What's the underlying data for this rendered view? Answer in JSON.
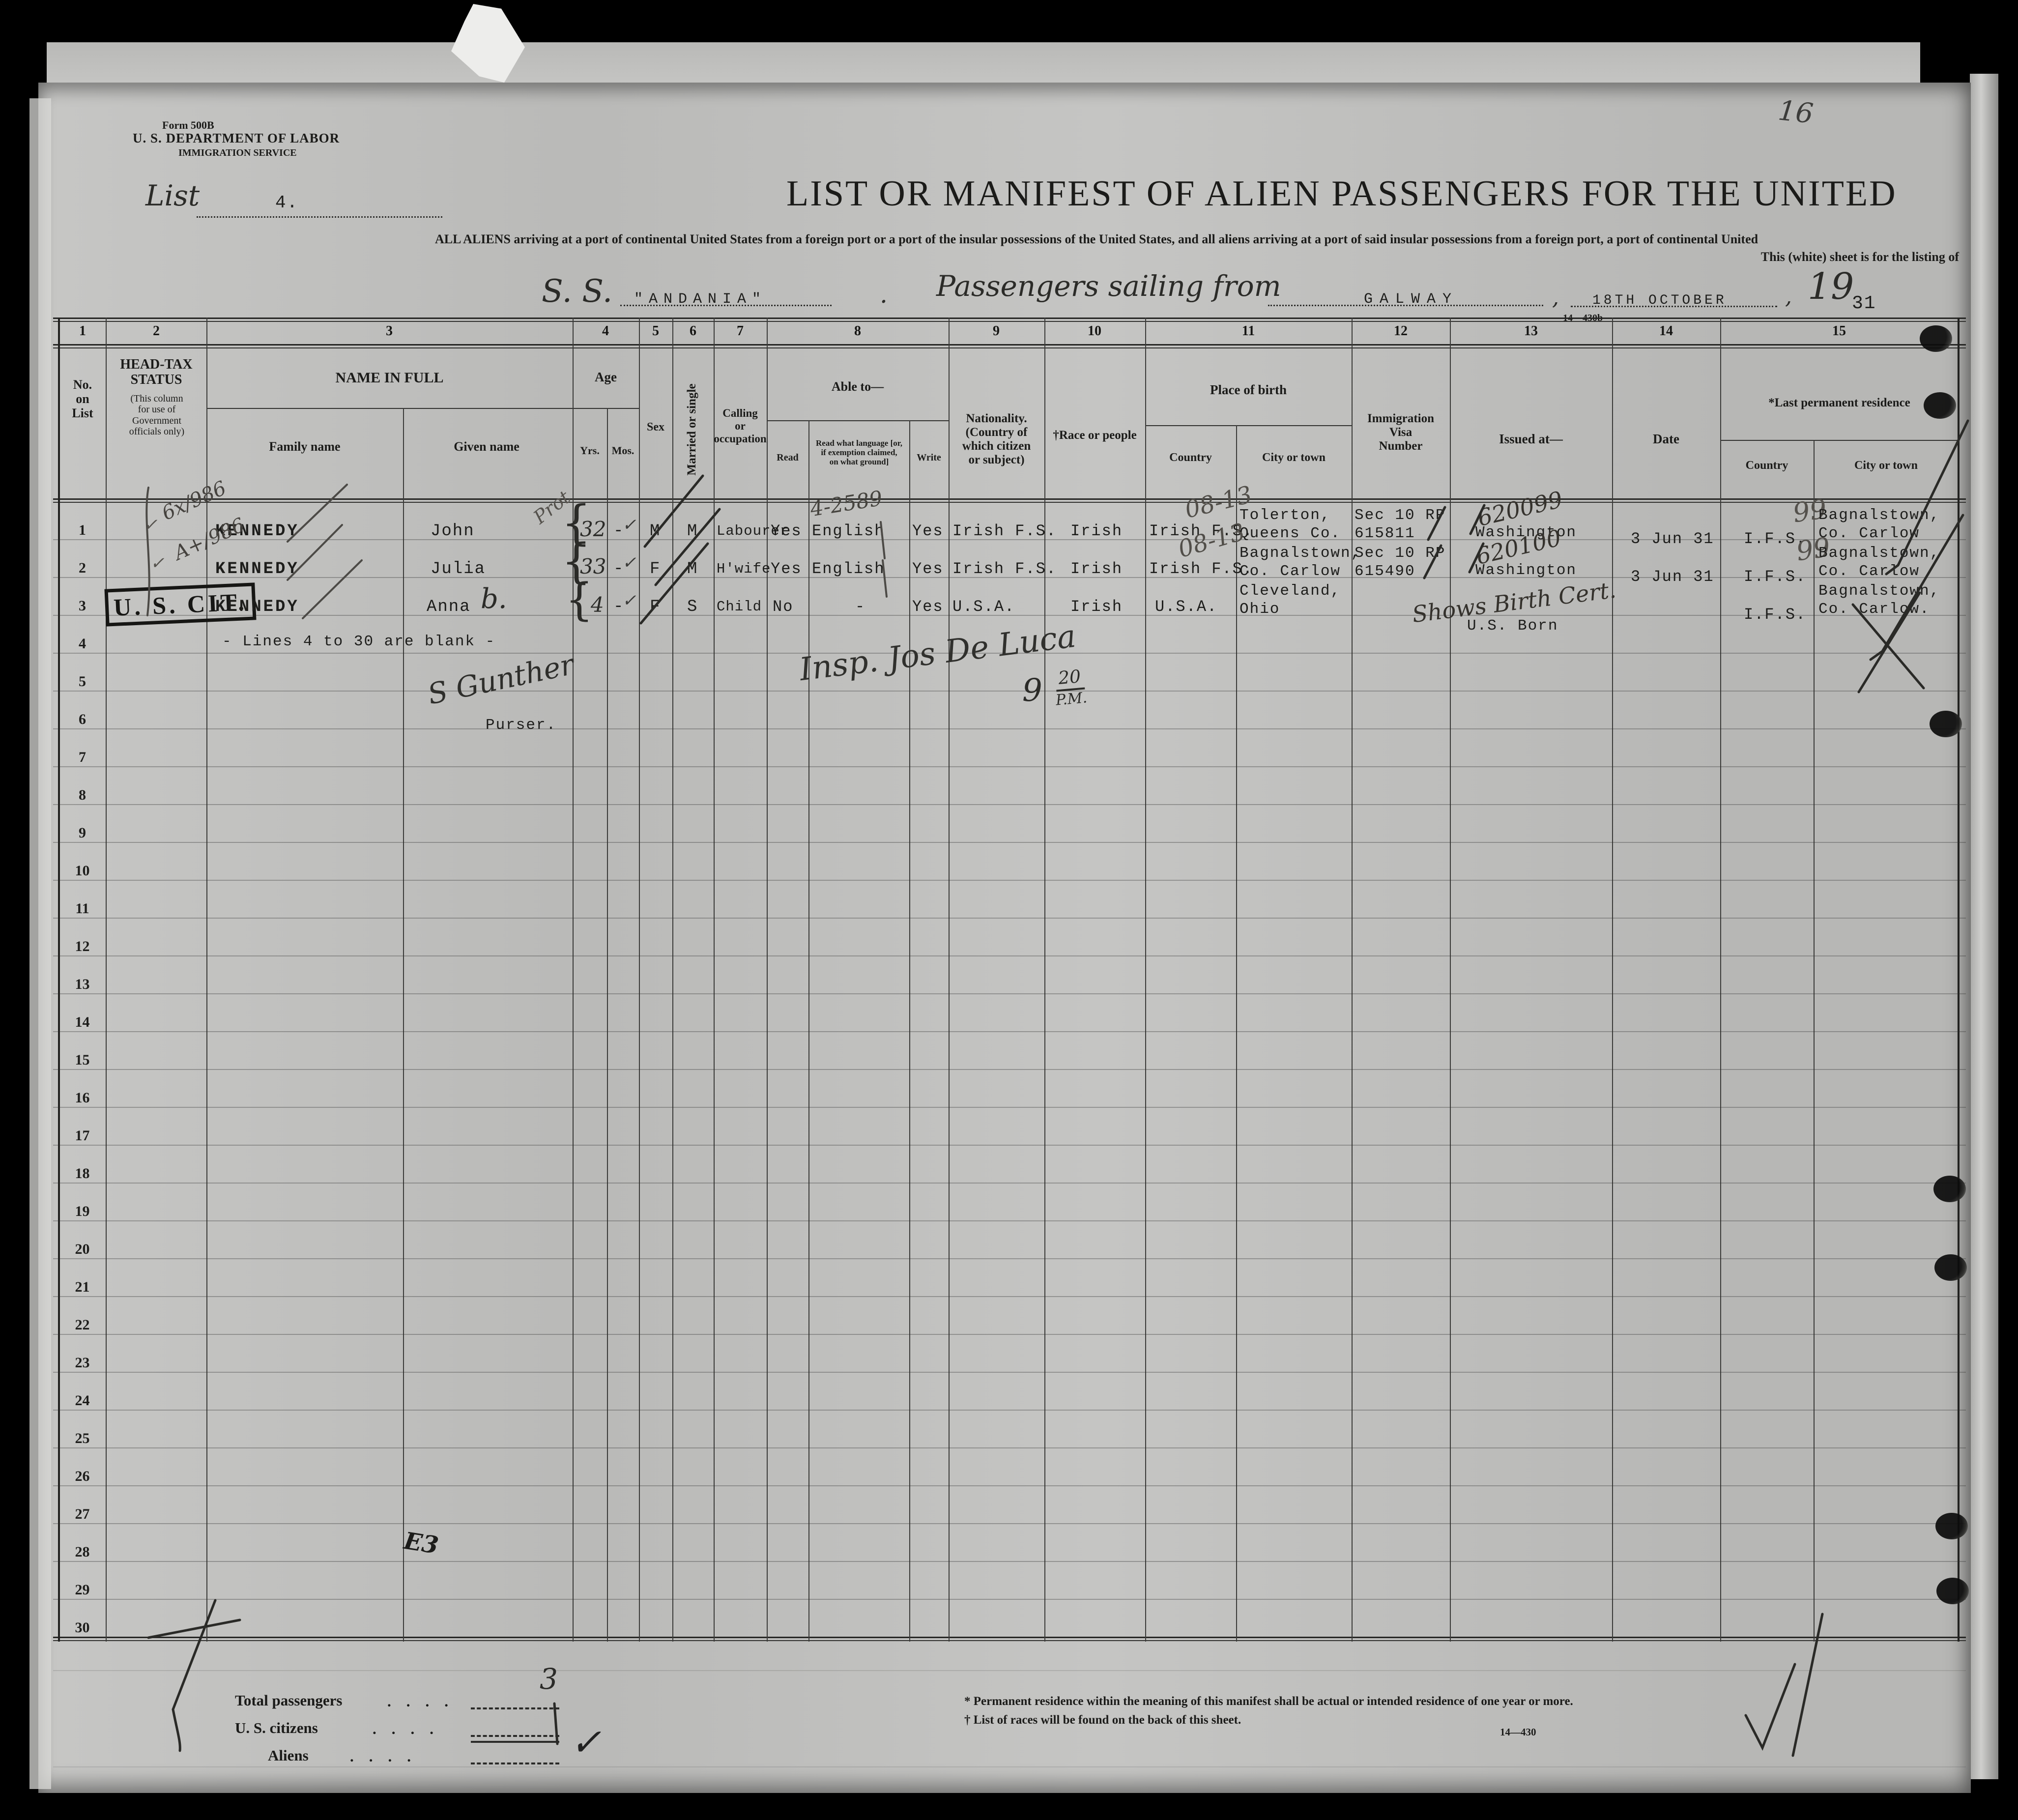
{
  "photo": {
    "page_mark": "16"
  },
  "form": {
    "form_number": "Form 500B",
    "department": "U. S. DEPARTMENT OF LABOR",
    "service": "IMMIGRATION SERVICE",
    "list_label": "List",
    "list_number": "4.",
    "title": "LIST OR MANIFEST OF ALIEN PASSENGERS FOR THE UNITED",
    "subtitle_line1": "ALL ALIENS arriving at a port of continental United States from a foreign port or a port of the insular possessions of the United States, and all aliens arriving at a port of said insular possessions from a foreign port, a port of continental United",
    "subtitle_line2": "This (white) sheet is for the listing of",
    "ss_label": "S. S.",
    "ship_name": "\"ANDANIA\"",
    "ss_period": ".",
    "sailing_label": "Passengers sailing from",
    "port": "GALWAY",
    "comma1": ",",
    "sailing_date": "18TH OCTOBER",
    "comma2": ",",
    "year_prefix": "19",
    "year_suffix": "31",
    "form_code_top": "14—430b",
    "form_code_bottom": "14—430"
  },
  "table": {
    "column_numbers": [
      "1",
      "2",
      "3",
      "4",
      "5",
      "6",
      "7",
      "8",
      "9",
      "10",
      "11",
      "12",
      "13",
      "14",
      "15"
    ],
    "headers": {
      "no_on_list": "No.\non\nList",
      "head_tax": "HEAD-TAX\nSTATUS",
      "head_tax_note": "(This column\nfor use of\nGovernment\nofficials only)",
      "name_in_full": "NAME IN FULL",
      "family_name": "Family name",
      "given_name": "Given name",
      "age": "Age",
      "yrs": "Yrs.",
      "mos": "Mos.",
      "sex": "Sex",
      "married": "Married or single",
      "calling": "Calling\nor\noccupation",
      "able_to": "Able to—",
      "read": "Read",
      "read_language": "Read what language [or,\nif exemption claimed,\non what ground]",
      "write": "Write",
      "nationality": "Nationality.\n(Country of\nwhich citizen\nor subject)",
      "race": "†Race or people",
      "place_of_birth": "Place of birth",
      "birth_country": "Country",
      "birth_city": "City or town",
      "visa_number": "Immigration\nVisa\nNumber",
      "issued_at": "Issued at—",
      "date": "Date",
      "last_residence": "*Last permanent residence",
      "residence_country": "Country",
      "residence_city": "City or town"
    },
    "row_numbers": [
      "1",
      "2",
      "3",
      "4",
      "5",
      "6",
      "7",
      "8",
      "9",
      "10",
      "11",
      "12",
      "13",
      "14",
      "15",
      "16",
      "17",
      "18",
      "19",
      "20",
      "21",
      "22",
      "23",
      "24",
      "25",
      "26",
      "27",
      "28",
      "29",
      "30"
    ],
    "passengers": [
      {
        "head_tax_check": "✓",
        "head_tax_note": "6x/986",
        "family_name": "KENNEDY",
        "given_name": "John",
        "pencil_note": "Prot",
        "brace": "{",
        "yrs": "32",
        "mos": "-",
        "mos_check": "✓",
        "sex": "M",
        "married": "M",
        "calling": "Labourer",
        "read": "Yes",
        "language": "English",
        "language_note": "4-2589",
        "write": "Yes",
        "nationality": "Irish F.S.",
        "race": "Irish",
        "birth_country": "Irish F.S.",
        "birth_country_note": "08-13",
        "birth_city_line1": "Tolerton,",
        "birth_city_line2": "Queens Co.",
        "visa_line1": "Sec 10 RP",
        "visa_line2": "615811",
        "issued_note": "620099",
        "issued_at": "Washington",
        "date": "3 Jun 31",
        "residence_note": "99",
        "residence_country": "I.F.S.",
        "residence_city_line1": "Bagnalstown,",
        "residence_city_line2": "Co. Carlow"
      },
      {
        "head_tax_check": "✓",
        "head_tax_note": "A+/986",
        "family_name": "KENNEDY",
        "given_name": "Julia",
        "brace": "{",
        "yrs": "33",
        "mos": "-",
        "mos_check": "✓",
        "sex": "F",
        "married": "M",
        "calling": "H'wife",
        "read": "Yes",
        "language": "English",
        "write": "Yes",
        "nationality": "Irish F.S.",
        "race": "Irish",
        "birth_country": "Irish F.S.",
        "birth_country_note": "08-13",
        "birth_city_line1": "Bagnalstown,",
        "birth_city_line2": "Co. Carlow",
        "visa_line1": "Sec 10 RP",
        "visa_line2": "615490",
        "issued_note": "620100",
        "issued_at": "Washington",
        "date": "3 Jun 31",
        "residence_note": "99",
        "residence_country": "I.F.S.",
        "residence_city_line1": "Bagnalstown,",
        "residence_city_line2": "Co. Carlow"
      },
      {
        "head_tax_stamp": "U. S. CIT.",
        "family_name": "KENNEDY",
        "given_name": "Anna",
        "given_name_note": "b.",
        "brace": "{",
        "yrs": "4",
        "mos": "-",
        "mos_check": "✓",
        "sex": "F",
        "married": "S",
        "calling": "Child",
        "read": "No",
        "language": "-",
        "write": "Yes",
        "nationality": "U.S.A.",
        "race": "Irish",
        "birth_country": "U.S.A.",
        "birth_city_line1": "Cleveland,",
        "birth_city_line2": "Ohio",
        "visa_note": "Shows Birth Cert.",
        "us_born": "U.S. Born",
        "residence_country": "I.F.S.",
        "residence_city_line1": "Bagnalstown,",
        "residence_city_line2": "Co. Carlow."
      }
    ],
    "blank_note": "- Lines 4 to 30 are blank -",
    "purser_signature": "S Gunther",
    "purser_label": "Purser.",
    "inspector_signature": "Insp. Jos De Luca",
    "time_hour": "9",
    "time_minutes": "20",
    "time_ampm": "P.M.",
    "margin_mark": "E3"
  },
  "totals": {
    "total_passengers_label": "Total passengers",
    "total_passengers_value": "3",
    "us_citizens_label": "U. S. citizens",
    "aliens_label": "Aliens",
    "aliens_check": "✓",
    "leader_dots": ".  .  .  ."
  },
  "footnotes": {
    "line1": "* Permanent residence within the meaning of this manifest shall be actual or intended residence of one year or more.",
    "line2": "† List of races will be found on the back of this sheet."
  }
}
